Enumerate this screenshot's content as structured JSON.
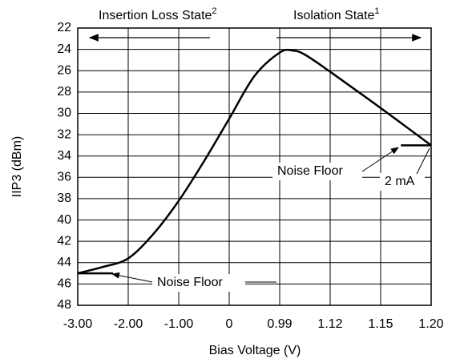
{
  "chart_data": {
    "type": "line",
    "x_label": "Bias Voltage (V)",
    "y_label": "IIP3 (dBm)",
    "xlim": [
      0,
      7
    ],
    "xticks": [
      {
        "value": 0,
        "label": "-3.00"
      },
      {
        "value": 1,
        "label": "-2.00"
      },
      {
        "value": 2,
        "label": "-1.00"
      },
      {
        "value": 3,
        "label": "0"
      },
      {
        "value": 4,
        "label": "0.99"
      },
      {
        "value": 5,
        "label": "1.12"
      },
      {
        "value": 6,
        "label": "1.15"
      },
      {
        "value": 7,
        "label": "1.20"
      }
    ],
    "ylim": [
      48,
      22
    ],
    "yticks": [
      22,
      24,
      26,
      28,
      30,
      32,
      34,
      36,
      38,
      40,
      42,
      44,
      46,
      48
    ],
    "grid": true,
    "series": [
      {
        "color": "#000000",
        "x": [
          0,
          0.5,
          1,
          1.5,
          2,
          2.5,
          3,
          3.5,
          4,
          4.25,
          4.5,
          5,
          6,
          7
        ],
        "values": [
          45,
          44.4,
          43.6,
          41.3,
          38.2,
          34.5,
          30.5,
          26.5,
          24.3,
          24.1,
          24.5,
          26.1,
          29.5,
          33
        ]
      }
    ],
    "noise_floor_lines": [
      {
        "x": [
          0,
          0.7
        ],
        "values": [
          45,
          45
        ]
      },
      {
        "x": [
          6.4,
          7
        ],
        "values": [
          33,
          33
        ]
      }
    ],
    "annotations": {
      "insertion": "Insertion Loss State",
      "insertion_sup": "2",
      "isolation": "Isolation State",
      "isolation_sup": "1",
      "noise_floor_left": "Noise Floor",
      "noise_floor_right": "Noise Floor",
      "current": "2 mA"
    }
  }
}
